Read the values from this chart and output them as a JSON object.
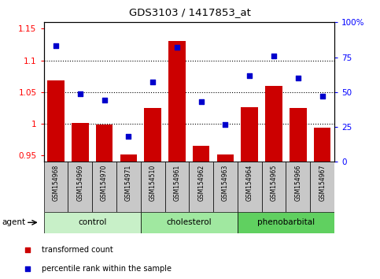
{
  "title": "GDS3103 / 1417853_at",
  "samples": [
    "GSM154968",
    "GSM154969",
    "GSM154970",
    "GSM154971",
    "GSM154510",
    "GSM154961",
    "GSM154962",
    "GSM154963",
    "GSM154964",
    "GSM154965",
    "GSM154966",
    "GSM154967"
  ],
  "bar_values": [
    1.068,
    1.001,
    0.999,
    0.951,
    1.025,
    1.13,
    0.965,
    0.952,
    1.026,
    1.06,
    1.025,
    0.994
  ],
  "scatter_values": [
    83,
    49,
    44,
    18,
    57,
    82,
    43,
    27,
    62,
    76,
    60,
    47
  ],
  "groups": [
    {
      "label": "control",
      "start": 0,
      "end": 3
    },
    {
      "label": "cholesterol",
      "start": 4,
      "end": 7
    },
    {
      "label": "phenobarbital",
      "start": 8,
      "end": 11
    }
  ],
  "group_colors": [
    "#c8f0c8",
    "#a0e8a0",
    "#60d060"
  ],
  "ylim_left": [
    0.94,
    1.16
  ],
  "ylim_right": [
    0,
    100
  ],
  "yticks_left": [
    0.95,
    1.0,
    1.05,
    1.1,
    1.15
  ],
  "yticks_right": [
    0,
    25,
    50,
    75,
    100
  ],
  "ytick_labels_left": [
    "0.95",
    "1",
    "1.05",
    "1.1",
    "1.15"
  ],
  "ytick_labels_right": [
    "0",
    "25",
    "50",
    "75",
    "100%"
  ],
  "hlines": [
    1.0,
    1.05,
    1.1
  ],
  "bar_color": "#cc0000",
  "scatter_color": "#0000cc",
  "bar_baseline": 0.94,
  "agent_label": "agent",
  "legend_bar_label": "transformed count",
  "legend_scatter_label": "percentile rank within the sample",
  "sample_box_color": "#c8c8c8",
  "fig_bg": "#ffffff"
}
